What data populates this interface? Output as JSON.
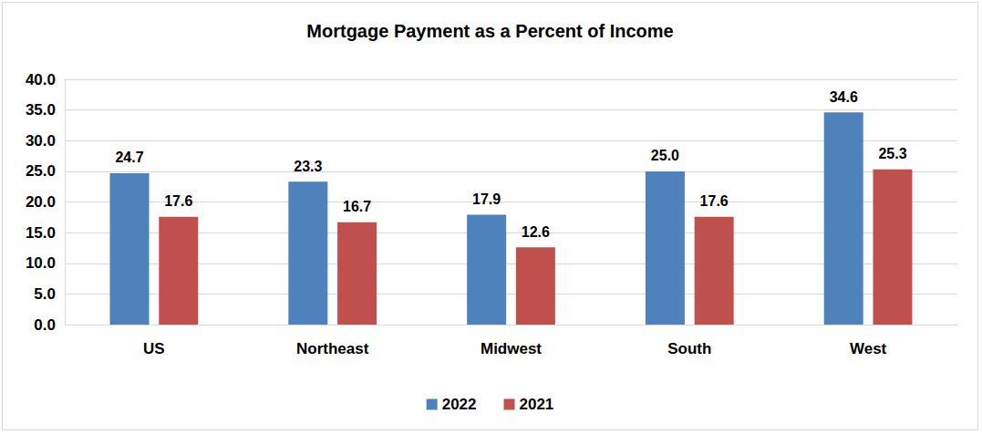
{
  "chart_data": {
    "type": "bar",
    "title": "Mortgage Payment as a Percent of Income",
    "categories": [
      "US",
      "Northeast",
      "Midwest",
      "South",
      "West"
    ],
    "series": [
      {
        "name": "2022",
        "color": "#4f81bd",
        "values": [
          24.7,
          23.3,
          17.9,
          25.0,
          34.6
        ],
        "value_labels": [
          "24.7",
          "23.3",
          "17.9",
          "25.0",
          "34.6"
        ]
      },
      {
        "name": "2021",
        "color": "#c0504d",
        "values": [
          17.6,
          16.7,
          12.6,
          17.6,
          25.3
        ],
        "value_labels": [
          "17.6",
          "16.7",
          "12.6",
          "17.6",
          "25.3"
        ]
      }
    ],
    "ylim": [
      0,
      40
    ],
    "yticks": [
      {
        "value": 0,
        "label": "0.0"
      },
      {
        "value": 5,
        "label": "5.0"
      },
      {
        "value": 10,
        "label": "10.0"
      },
      {
        "value": 15,
        "label": "15.0"
      },
      {
        "value": 20,
        "label": "20.0"
      },
      {
        "value": 25,
        "label": "25.0"
      },
      {
        "value": 30,
        "label": "30.0"
      },
      {
        "value": 35,
        "label": "35.0"
      },
      {
        "value": 40,
        "label": "40.0"
      }
    ],
    "grid": true,
    "legend": "bottom",
    "data_labels": true
  }
}
